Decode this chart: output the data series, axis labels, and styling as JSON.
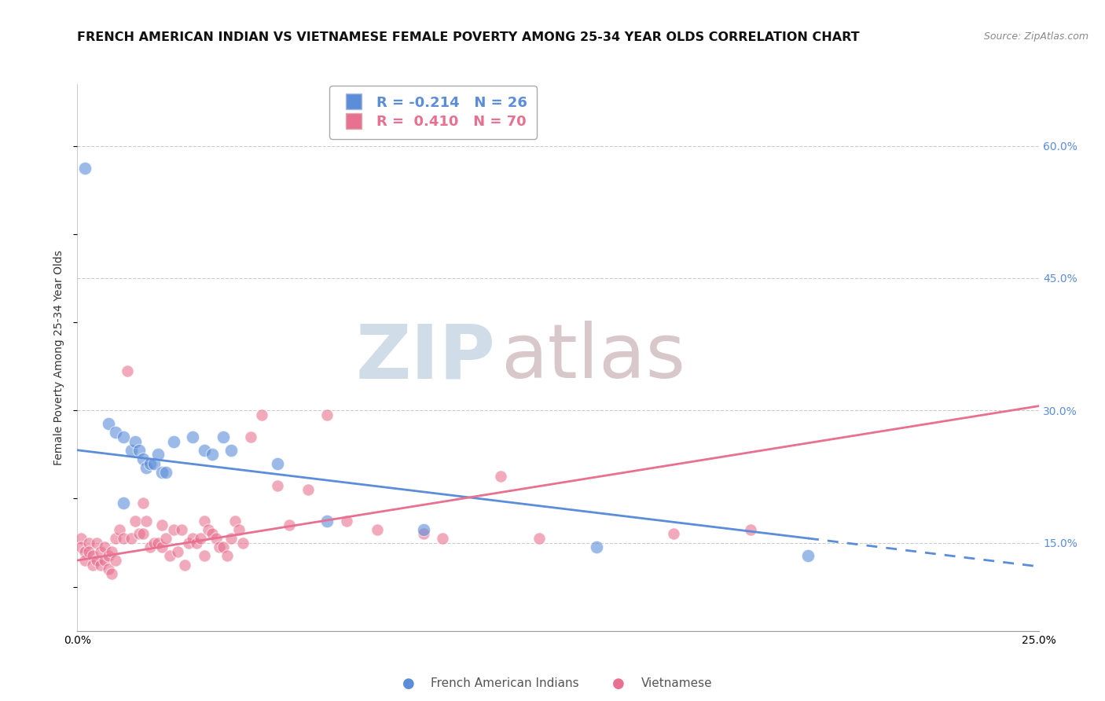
{
  "title": "FRENCH AMERICAN INDIAN VS VIETNAMESE FEMALE POVERTY AMONG 25-34 YEAR OLDS CORRELATION CHART",
  "source": "Source: ZipAtlas.com",
  "ylabel": "Female Poverty Among 25-34 Year Olds",
  "xlim": [
    0.0,
    0.25
  ],
  "ylim": [
    0.05,
    0.67
  ],
  "yticks_right": [
    0.15,
    0.3,
    0.45,
    0.6
  ],
  "yticklabels_right": [
    "15.0%",
    "30.0%",
    "45.0%",
    "60.0%"
  ],
  "legend": {
    "R1": "-0.214",
    "N1": "26",
    "R2": "0.410",
    "N2": "70",
    "label1": "French American Indians",
    "label2": "Vietnamese",
    "color1": "#7bafd4",
    "color2": "#f4a0b0"
  },
  "watermark_zip": "ZIP",
  "watermark_atlas": "atlas",
  "blue_scatter": [
    [
      0.002,
      0.575
    ],
    [
      0.008,
      0.285
    ],
    [
      0.01,
      0.275
    ],
    [
      0.012,
      0.27
    ],
    [
      0.014,
      0.255
    ],
    [
      0.015,
      0.265
    ],
    [
      0.016,
      0.255
    ],
    [
      0.017,
      0.245
    ],
    [
      0.018,
      0.235
    ],
    [
      0.019,
      0.24
    ],
    [
      0.02,
      0.24
    ],
    [
      0.021,
      0.25
    ],
    [
      0.022,
      0.23
    ],
    [
      0.023,
      0.23
    ],
    [
      0.025,
      0.265
    ],
    [
      0.03,
      0.27
    ],
    [
      0.033,
      0.255
    ],
    [
      0.035,
      0.25
    ],
    [
      0.038,
      0.27
    ],
    [
      0.04,
      0.255
    ],
    [
      0.052,
      0.24
    ],
    [
      0.065,
      0.175
    ],
    [
      0.09,
      0.165
    ],
    [
      0.135,
      0.145
    ],
    [
      0.19,
      0.135
    ],
    [
      0.012,
      0.195
    ]
  ],
  "pink_scatter": [
    [
      0.001,
      0.155
    ],
    [
      0.001,
      0.145
    ],
    [
      0.002,
      0.14
    ],
    [
      0.002,
      0.13
    ],
    [
      0.003,
      0.15
    ],
    [
      0.003,
      0.14
    ],
    [
      0.004,
      0.135
    ],
    [
      0.004,
      0.125
    ],
    [
      0.005,
      0.15
    ],
    [
      0.005,
      0.13
    ],
    [
      0.006,
      0.14
    ],
    [
      0.006,
      0.125
    ],
    [
      0.007,
      0.145
    ],
    [
      0.007,
      0.13
    ],
    [
      0.008,
      0.135
    ],
    [
      0.008,
      0.12
    ],
    [
      0.009,
      0.14
    ],
    [
      0.009,
      0.115
    ],
    [
      0.01,
      0.155
    ],
    [
      0.01,
      0.13
    ],
    [
      0.011,
      0.165
    ],
    [
      0.012,
      0.155
    ],
    [
      0.013,
      0.345
    ],
    [
      0.014,
      0.155
    ],
    [
      0.015,
      0.175
    ],
    [
      0.016,
      0.16
    ],
    [
      0.017,
      0.195
    ],
    [
      0.017,
      0.16
    ],
    [
      0.018,
      0.175
    ],
    [
      0.019,
      0.145
    ],
    [
      0.02,
      0.15
    ],
    [
      0.021,
      0.15
    ],
    [
      0.022,
      0.17
    ],
    [
      0.022,
      0.145
    ],
    [
      0.023,
      0.155
    ],
    [
      0.024,
      0.135
    ],
    [
      0.025,
      0.165
    ],
    [
      0.026,
      0.14
    ],
    [
      0.027,
      0.165
    ],
    [
      0.028,
      0.125
    ],
    [
      0.029,
      0.15
    ],
    [
      0.03,
      0.155
    ],
    [
      0.031,
      0.15
    ],
    [
      0.032,
      0.155
    ],
    [
      0.033,
      0.135
    ],
    [
      0.033,
      0.175
    ],
    [
      0.034,
      0.165
    ],
    [
      0.035,
      0.16
    ],
    [
      0.036,
      0.155
    ],
    [
      0.037,
      0.145
    ],
    [
      0.038,
      0.145
    ],
    [
      0.039,
      0.135
    ],
    [
      0.04,
      0.155
    ],
    [
      0.041,
      0.175
    ],
    [
      0.042,
      0.165
    ],
    [
      0.043,
      0.15
    ],
    [
      0.045,
      0.27
    ],
    [
      0.048,
      0.295
    ],
    [
      0.052,
      0.215
    ],
    [
      0.055,
      0.17
    ],
    [
      0.06,
      0.21
    ],
    [
      0.065,
      0.295
    ],
    [
      0.07,
      0.175
    ],
    [
      0.078,
      0.165
    ],
    [
      0.09,
      0.16
    ],
    [
      0.095,
      0.155
    ],
    [
      0.11,
      0.225
    ],
    [
      0.12,
      0.155
    ],
    [
      0.155,
      0.16
    ],
    [
      0.175,
      0.165
    ]
  ],
  "blue_line_solid": {
    "x0": 0.0,
    "y0": 0.255,
    "x1": 0.19,
    "y1": 0.155
  },
  "blue_line_dash": {
    "x0": 0.19,
    "y0": 0.155,
    "x1": 0.25,
    "y1": 0.123
  },
  "pink_line": {
    "x0": 0.0,
    "y0": 0.13,
    "x1": 0.25,
    "y1": 0.305
  },
  "blue_color": "#5b8dd9",
  "pink_color": "#e87090",
  "grid_color": "#cccccc",
  "background_color": "#ffffff",
  "title_fontsize": 11.5,
  "axis_label_fontsize": 10,
  "tick_fontsize": 10,
  "legend_fontsize": 13
}
